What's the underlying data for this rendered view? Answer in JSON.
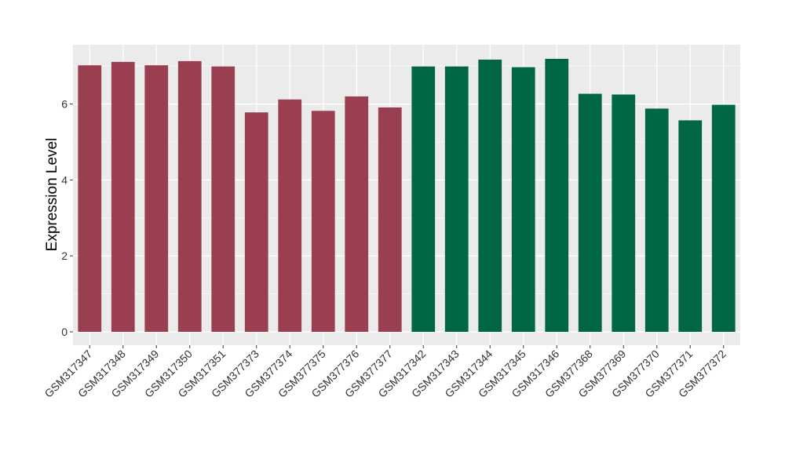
{
  "chart_data": {
    "type": "bar",
    "title": "",
    "xlabel": "",
    "ylabel": "Expression Level",
    "ylim": [
      0,
      7.45
    ],
    "yticks": [
      0,
      2,
      4,
      6
    ],
    "grid": true,
    "legend": "none",
    "colors": {
      "group_a": "#9a3f4f",
      "group_b": "#006644",
      "panel_bg": "#ebebeb",
      "grid": "#ffffff"
    },
    "categories": [
      "GSM317347",
      "GSM317348",
      "GSM317349",
      "GSM317350",
      "GSM317351",
      "GSM377373",
      "GSM377374",
      "GSM377375",
      "GSM377376",
      "GSM377377",
      "GSM317342",
      "GSM317343",
      "GSM317344",
      "GSM317345",
      "GSM317346",
      "GSM377368",
      "GSM377369",
      "GSM377370",
      "GSM377371",
      "GSM377372"
    ],
    "values": [
      7.02,
      7.11,
      7.02,
      7.13,
      6.99,
      5.78,
      6.12,
      5.82,
      6.2,
      5.91,
      6.99,
      6.99,
      7.17,
      6.97,
      7.19,
      6.27,
      6.25,
      5.88,
      5.57,
      5.98
    ],
    "groups": [
      "a",
      "a",
      "a",
      "a",
      "a",
      "a",
      "a",
      "a",
      "a",
      "a",
      "b",
      "b",
      "b",
      "b",
      "b",
      "b",
      "b",
      "b",
      "b",
      "b"
    ]
  }
}
